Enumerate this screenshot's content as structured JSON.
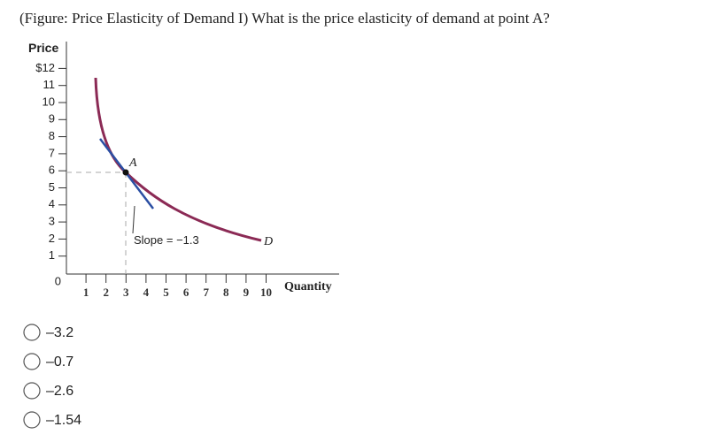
{
  "question": "(Figure: Price Elasticity of Demand I) What is the price elasticity of demand at point A?",
  "figure": {
    "y_axis_label": "Price",
    "x_axis_label": "Quantity",
    "origin_label": "0",
    "yticks": [
      {
        "value": 12,
        "label": "$12"
      },
      11,
      10,
      9,
      8,
      7,
      6,
      5,
      4,
      3,
      2,
      1
    ],
    "xticks": [
      1,
      2,
      3,
      4,
      5,
      6,
      7,
      8,
      9,
      10
    ],
    "point_label": "A",
    "slope_label": "Slope = −1.3",
    "curve_label": "D"
  },
  "options": [
    "–3.2",
    "–0.7",
    "–2.6",
    "–1.54"
  ]
}
